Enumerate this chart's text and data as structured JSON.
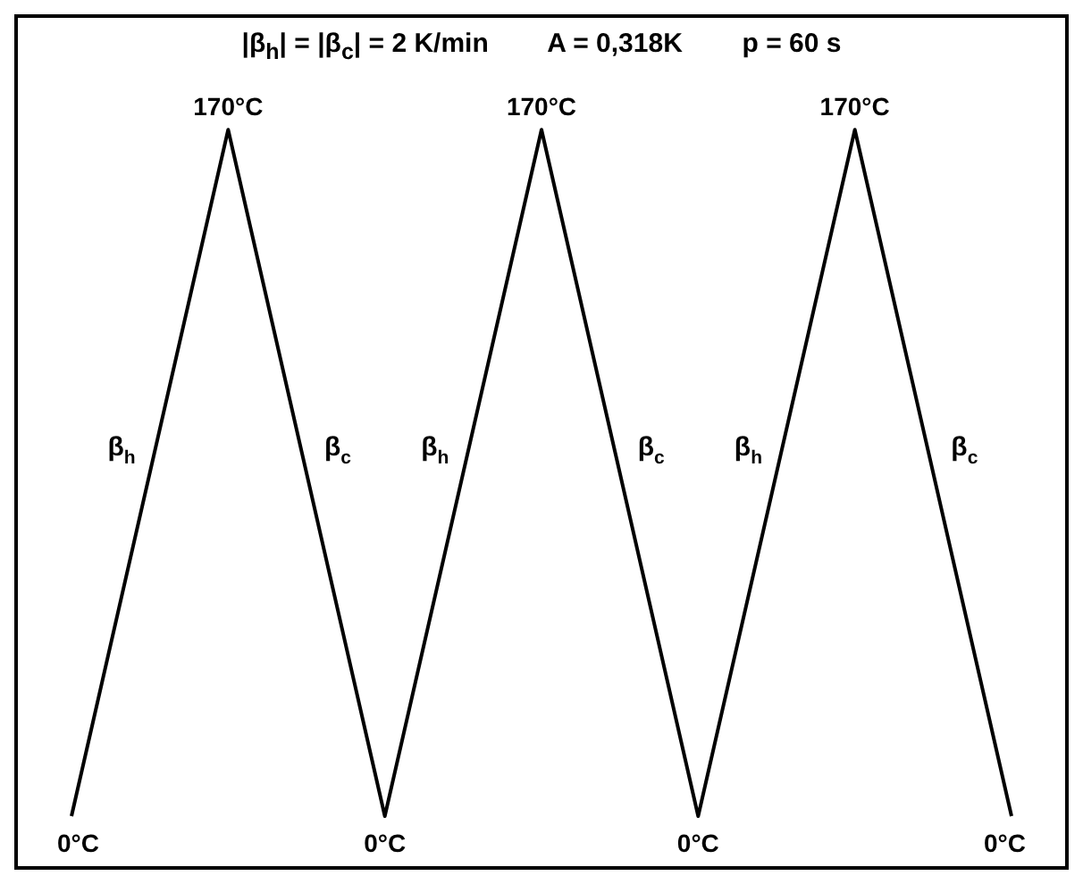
{
  "chart_data": {
    "type": "line",
    "title": "|β$_{h}$| = |β$_{c}$| = 2 K/min        A = 0,318K        p = 60 s",
    "categories": [
      null,
      null,
      null,
      null,
      null,
      null,
      null
    ],
    "values": [
      0,
      170,
      0,
      170,
      0,
      170,
      0
    ],
    "value_labels": [
      "0°C",
      "170°C",
      "0°C",
      "170°C",
      "0°C",
      "170°C",
      "0°C"
    ],
    "color": "#000000",
    "marker": "none",
    "line_style": "solid",
    "annotations": [
      "β$_{h}$",
      "β$_{c}$",
      "β$_{h}$",
      "β$_{c}$",
      "β$_{h}$",
      "β$_{c}$"
    ]
  }
}
